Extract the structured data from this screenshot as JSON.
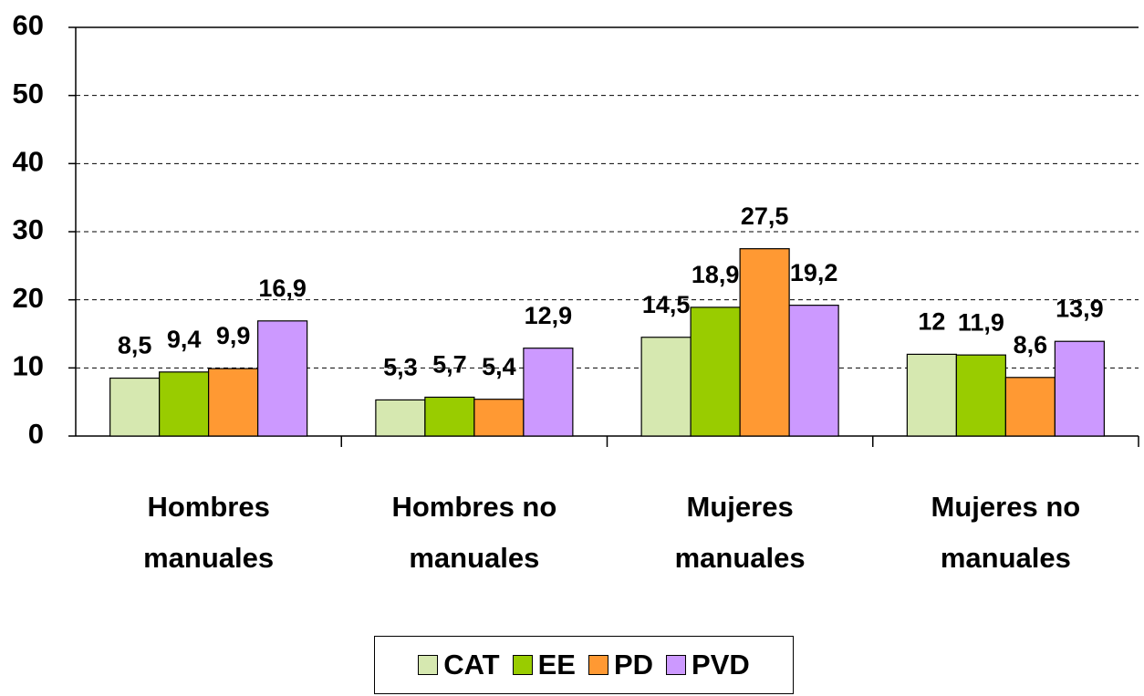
{
  "chart_data": {
    "type": "bar",
    "categories": [
      "Hombres manuales",
      "Hombres no manuales",
      "Mujeres manuales",
      "Mujeres no manuales"
    ],
    "series": [
      {
        "name": "CAT",
        "color": "#d6e8b0",
        "values": [
          8.5,
          5.3,
          14.5,
          12
        ],
        "value_labels": [
          "8,5",
          "5,3",
          "14,5",
          "12"
        ]
      },
      {
        "name": "EE",
        "color": "#99cc00",
        "values": [
          9.4,
          5.7,
          18.9,
          11.9
        ],
        "value_labels": [
          "9,4",
          "5,7",
          "18,9",
          "11,9"
        ]
      },
      {
        "name": "PD",
        "color": "#ff9933",
        "values": [
          9.9,
          5.4,
          27.5,
          8.6
        ],
        "value_labels": [
          "9,9",
          "5,4",
          "27,5",
          "8,6"
        ]
      },
      {
        "name": "PVD",
        "color": "#cc99ff",
        "values": [
          16.9,
          12.9,
          19.2,
          13.9
        ],
        "value_labels": [
          "16,9",
          "12,9",
          "19,2",
          "13,9"
        ]
      }
    ],
    "ylim": [
      0,
      60
    ],
    "yticks": [
      0,
      10,
      20,
      30,
      40,
      50,
      60
    ],
    "grid": true,
    "legend": "bottom"
  }
}
